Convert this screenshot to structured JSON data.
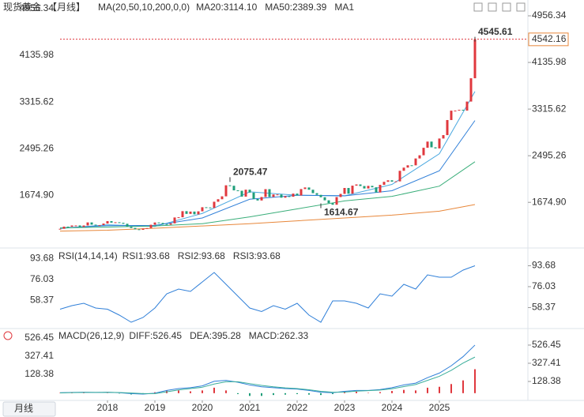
{
  "ui": {
    "period_button": "月线"
  },
  "chart_data": [
    {
      "type": "candlestick",
      "title": "现货黄金",
      "period": "【月线】",
      "indicator": "MA(20,50,10,200,0,0)",
      "legend": [
        {
          "label": "MA20:3114.10",
          "color": "#2f7fd8"
        },
        {
          "label": "MA50:2389.39",
          "color": "#3aae7a"
        },
        {
          "label": "MA1",
          "color": "#2f7fd8"
        }
      ],
      "closes": [
        1210,
        1248,
        1247,
        1268,
        1269,
        1242,
        1268,
        1322,
        1283,
        1271,
        1275,
        1302,
        1345,
        1318,
        1325,
        1315,
        1298,
        1253,
        1224,
        1201,
        1192,
        1214,
        1222,
        1281,
        1321,
        1313,
        1292,
        1283,
        1305,
        1409,
        1413,
        1520,
        1472,
        1513,
        1464,
        1517,
        1589,
        1585,
        1577,
        1686,
        1730,
        1781,
        1975,
        1967,
        1886,
        1879,
        1776,
        1898,
        1847,
        1734,
        1708,
        1769,
        1907,
        1770,
        1814,
        1814,
        1757,
        1783,
        1774,
        1829,
        1796,
        1909,
        1937,
        1897,
        1837,
        1807,
        1765,
        1711,
        1661,
        1633,
        1768,
        1824,
        1928,
        1827,
        1969,
        1990,
        1962,
        1919,
        1965,
        1940,
        1849,
        1983,
        2036,
        2063,
        2039,
        2044,
        2230,
        2286,
        2327,
        2326,
        2447,
        2503,
        2635,
        2744,
        2643,
        2624,
        2798,
        2858,
        3123,
        3288,
        3289,
        3303,
        3289,
        3448,
        3858,
        4542.16
      ],
      "up_color": "#e0383e",
      "down_color": "#1f9e7a",
      "ylim": [
        900,
        5040
      ],
      "yticks": [
        4956.34,
        4135.98,
        3315.62,
        2495.26,
        {
          "value": 1674.9,
          "label": "1674.90"
        }
      ],
      "xticks": [
        {
          "value": 12,
          "label": "2018"
        },
        {
          "value": 24,
          "label": "2019"
        },
        {
          "value": 36,
          "label": "2020"
        },
        {
          "value": 48,
          "label": "2021"
        },
        {
          "value": 60,
          "label": "2022"
        },
        {
          "value": 72,
          "label": "2023"
        },
        {
          "value": 84,
          "label": "2024"
        },
        {
          "value": 96,
          "label": "2025"
        }
      ],
      "ma_x": [
        0,
        12,
        24,
        36,
        48,
        60,
        72,
        84,
        96,
        105
      ],
      "series": [
        {
          "color": "#4aa8e0",
          "values": [
            1215,
            1280,
            1250,
            1480,
            1860,
            1800,
            1790,
            1990,
            2530,
            3624
          ]
        },
        {
          "color": "#2f7fd8",
          "values": [
            1225,
            1265,
            1270,
            1400,
            1730,
            1800,
            1790,
            1880,
            2230,
            3114.1
          ]
        },
        {
          "color": "#3aae7a",
          "values": [
            1225,
            1240,
            1260,
            1300,
            1420,
            1560,
            1700,
            1780,
            1960,
            2389.39
          ]
        },
        {
          "color": "#e8873a",
          "values": [
            1170,
            1185,
            1220,
            1260,
            1300,
            1350,
            1400,
            1450,
            1520,
            1637
          ]
        }
      ],
      "annotations": [
        {
          "x": 43,
          "value": 2075.47
        },
        {
          "x": 66,
          "value": 1614.67
        },
        {
          "x": 105,
          "value": 4545.61
        }
      ],
      "last_price": 4542.16
    },
    {
      "type": "line",
      "title": "RSI(14,14,14)",
      "legend": [
        {
          "label": "RSI1:93.68",
          "color": "#2f7fd8"
        },
        {
          "label": "RSI2:93.68",
          "color": "#3aae9a"
        },
        {
          "label": "RSI3:93.68",
          "color": "#3aae9a"
        }
      ],
      "x": [
        0,
        3,
        6,
        9,
        12,
        15,
        18,
        21,
        24,
        27,
        30,
        33,
        36,
        39,
        42,
        45,
        48,
        51,
        54,
        57,
        60,
        63,
        66,
        69,
        72,
        75,
        78,
        81,
        84,
        87,
        90,
        93,
        96,
        99,
        102,
        105
      ],
      "series": [
        {
          "color": "#2f7fd8",
          "values": [
            57,
            60,
            62,
            58,
            57,
            52,
            46,
            50,
            58,
            70,
            74,
            72,
            80,
            88,
            78,
            68,
            58,
            55,
            60,
            57,
            62,
            52,
            46,
            64,
            64,
            62,
            58,
            70,
            68,
            78,
            74,
            86,
            84,
            84,
            90,
            93.68
          ]
        }
      ],
      "ylim": [
        42,
        106
      ],
      "yticks": [
        93.68,
        76.03,
        58.37
      ]
    },
    {
      "type": "macd",
      "title": "MACD(26,12,9)",
      "legend": [
        {
          "label": "DIFF:526.45",
          "color": "#2f7fd8"
        },
        {
          "label": "DEA:395.28",
          "color": "#3aae9a"
        },
        {
          "label": "MACD:262.33",
          "color": "#2f7fd8"
        }
      ],
      "x": [
        0,
        3,
        6,
        9,
        12,
        15,
        18,
        21,
        24,
        27,
        30,
        33,
        36,
        39,
        42,
        45,
        48,
        51,
        54,
        57,
        60,
        63,
        66,
        69,
        72,
        75,
        78,
        81,
        84,
        87,
        90,
        93,
        96,
        99,
        102,
        105
      ],
      "diff": {
        "color": "#2f7fd8",
        "values": [
          5,
          8,
          10,
          8,
          10,
          5,
          -5,
          -10,
          0,
          30,
          50,
          60,
          80,
          130,
          140,
          120,
          90,
          70,
          60,
          50,
          45,
          30,
          10,
          5,
          20,
          30,
          30,
          40,
          60,
          90,
          110,
          170,
          220,
          300,
          400,
          526.45
        ]
      },
      "dea": {
        "color": "#3aae9a",
        "values": [
          3,
          6,
          8,
          8,
          9,
          7,
          2,
          -5,
          -5,
          15,
          35,
          50,
          65,
          100,
          125,
          125,
          105,
          85,
          70,
          58,
          50,
          38,
          20,
          10,
          12,
          22,
          28,
          34,
          48,
          72,
          95,
          140,
          185,
          250,
          330,
          395.28
        ]
      },
      "hist": {
        "up_color": "#e0383e",
        "down_color": "#1f9e7a",
        "values": [
          4,
          4,
          4,
          0,
          2,
          -4,
          -14,
          -10,
          10,
          30,
          30,
          20,
          30,
          60,
          30,
          -10,
          -30,
          -30,
          -20,
          -16,
          -10,
          -16,
          -20,
          -10,
          16,
          16,
          4,
          12,
          24,
          36,
          30,
          60,
          70,
          100,
          140,
          262.33
        ]
      },
      "ylim": [
        -36,
        673
      ],
      "yticks": [
        526.45,
        327.41,
        128.38
      ]
    }
  ]
}
